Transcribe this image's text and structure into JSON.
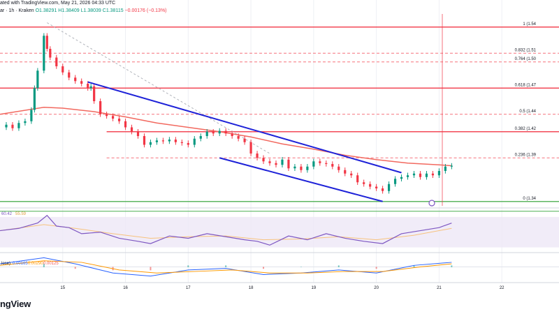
{
  "header": {
    "text": "ated with TradingView.com, May 21, 2026 04:33 UTC",
    "symbol": "ar · 1h · Kraken",
    "o": "O1.38291",
    "h": "H1.38409",
    "l": "L1.38039",
    "c": "C1.38115",
    "chg": "−0.00176 (−0.13%)"
  },
  "logo": "ngView",
  "fib_labels": [
    {
      "label": "1 (1.54",
      "level": 1.54
    },
    {
      "label": "0.832 (1.51",
      "level": 1.51
    },
    {
      "label": "0.764 (1.50",
      "level": 1.5
    },
    {
      "label": "0.618 (1.47",
      "level": 1.47
    },
    {
      "label": "0.5 (1.44",
      "level": 1.44
    },
    {
      "label": "0.382 (1.42",
      "level": 1.42
    },
    {
      "label": "0.236 (1.39",
      "level": 1.39
    },
    {
      "label": "0 (1.34",
      "level": 1.34
    }
  ],
  "rsi_labels": {
    "a": "60.42",
    "b": "55.59"
  },
  "macd_labels": {
    "name": "lose)",
    "a": "0.00165",
    "b": "0.00290",
    "c": "0.00125"
  },
  "chart_data": {
    "type": "line",
    "price_range": [
      1.335,
      1.555
    ],
    "x_ticks": [
      "15",
      "16",
      "17",
      "18",
      "19",
      "20",
      "21",
      "22"
    ],
    "x_tick_pos": [
      15,
      16,
      17,
      18,
      19,
      20,
      21,
      22
    ],
    "x_range": [
      14.0,
      22.8
    ],
    "colors": {
      "up": "#089981",
      "down": "#f23645",
      "trend": "#1e22d8",
      "ma": "#f2695f",
      "fib": "#f23645",
      "fib_light": "#e08a8a",
      "support": "#4caf50",
      "rsi": "#7e57c2",
      "rsi_bg": "#ede7f6",
      "rsi_ma": "#f7c27d",
      "macd": "#2962ff",
      "signal": "#ff9800"
    },
    "candles_close": [
      [
        14.0,
        1.425
      ],
      [
        14.1,
        1.428
      ],
      [
        14.2,
        1.424
      ],
      [
        14.3,
        1.43
      ],
      [
        14.4,
        1.432
      ],
      [
        14.5,
        1.445
      ],
      [
        14.55,
        1.47
      ],
      [
        14.6,
        1.49
      ],
      [
        14.7,
        1.53
      ],
      [
        14.75,
        1.515
      ],
      [
        14.8,
        1.505
      ],
      [
        14.9,
        1.495
      ],
      [
        15.0,
        1.488
      ],
      [
        15.1,
        1.482
      ],
      [
        15.2,
        1.478
      ],
      [
        15.3,
        1.475
      ],
      [
        15.4,
        1.47
      ],
      [
        15.45,
        1.472
      ],
      [
        15.5,
        1.455
      ],
      [
        15.6,
        1.44
      ],
      [
        15.7,
        1.438
      ],
      [
        15.8,
        1.435
      ],
      [
        15.9,
        1.432
      ],
      [
        16.0,
        1.425
      ],
      [
        16.1,
        1.42
      ],
      [
        16.2,
        1.415
      ],
      [
        16.3,
        1.405
      ],
      [
        16.4,
        1.408
      ],
      [
        16.5,
        1.41
      ],
      [
        16.6,
        1.409
      ],
      [
        16.7,
        1.411
      ],
      [
        16.8,
        1.408
      ],
      [
        16.9,
        1.407
      ],
      [
        17.0,
        1.405
      ],
      [
        17.1,
        1.412
      ],
      [
        17.2,
        1.415
      ],
      [
        17.3,
        1.42
      ],
      [
        17.4,
        1.418
      ],
      [
        17.5,
        1.421
      ],
      [
        17.6,
        1.418
      ],
      [
        17.7,
        1.415
      ],
      [
        17.8,
        1.412
      ],
      [
        17.9,
        1.408
      ],
      [
        18.0,
        1.395
      ],
      [
        18.1,
        1.39
      ],
      [
        18.2,
        1.386
      ],
      [
        18.3,
        1.384
      ],
      [
        18.4,
        1.382
      ],
      [
        18.5,
        1.388
      ],
      [
        18.6,
        1.378
      ],
      [
        18.7,
        1.38
      ],
      [
        18.8,
        1.376
      ],
      [
        18.9,
        1.38
      ],
      [
        19.0,
        1.386
      ],
      [
        19.1,
        1.384
      ],
      [
        19.2,
        1.383
      ],
      [
        19.3,
        1.38
      ],
      [
        19.4,
        1.376
      ],
      [
        19.5,
        1.372
      ],
      [
        19.6,
        1.37
      ],
      [
        19.7,
        1.362
      ],
      [
        19.8,
        1.36
      ],
      [
        19.9,
        1.357
      ],
      [
        20.0,
        1.355
      ],
      [
        20.1,
        1.352
      ],
      [
        20.2,
        1.36
      ],
      [
        20.3,
        1.366
      ],
      [
        20.4,
        1.368
      ],
      [
        20.5,
        1.37
      ],
      [
        20.6,
        1.372
      ],
      [
        20.7,
        1.368
      ],
      [
        20.8,
        1.372
      ],
      [
        20.9,
        1.37
      ],
      [
        21.0,
        1.375
      ],
      [
        21.1,
        1.38
      ],
      [
        21.2,
        1.381
      ]
    ],
    "ma_line": [
      [
        14.0,
        1.44
      ],
      [
        14.7,
        1.448
      ],
      [
        15.0,
        1.447
      ],
      [
        15.5,
        1.443
      ],
      [
        16.0,
        1.437
      ],
      [
        16.5,
        1.43
      ],
      [
        17.0,
        1.425
      ],
      [
        17.5,
        1.42
      ],
      [
        18.0,
        1.414
      ],
      [
        18.5,
        1.406
      ],
      [
        19.0,
        1.4
      ],
      [
        19.5,
        1.393
      ],
      [
        20.0,
        1.388
      ],
      [
        20.5,
        1.384
      ],
      [
        21.0,
        1.382
      ],
      [
        21.2,
        1.381
      ]
    ],
    "dashed_line": [
      [
        14.75,
        1.545
      ],
      [
        18.3,
        1.395
      ]
    ],
    "trend_upper": [
      [
        15.4,
        1.477
      ],
      [
        20.4,
        1.373
      ]
    ],
    "trend_lower": [
      [
        17.5,
        1.39
      ],
      [
        20.1,
        1.34
      ]
    ],
    "fib_lines": [
      1.54,
      1.51,
      1.5,
      1.47,
      1.44,
      1.42,
      1.39,
      1.34
    ],
    "fib_lines_start": [
      14.0,
      14.0,
      14.0,
      14.0,
      14.0,
      15.7,
      15.7,
      14.0
    ],
    "support": [
      1.332
    ],
    "rsi": [
      [
        14.0,
        52
      ],
      [
        14.3,
        55
      ],
      [
        14.6,
        62
      ],
      [
        14.75,
        72
      ],
      [
        14.9,
        58
      ],
      [
        15.1,
        56
      ],
      [
        15.3,
        48
      ],
      [
        15.6,
        50
      ],
      [
        15.9,
        42
      ],
      [
        16.2,
        38
      ],
      [
        16.4,
        35
      ],
      [
        16.7,
        45
      ],
      [
        17.0,
        42
      ],
      [
        17.3,
        48
      ],
      [
        17.6,
        44
      ],
      [
        17.9,
        40
      ],
      [
        18.1,
        38
      ],
      [
        18.3,
        33
      ],
      [
        18.6,
        45
      ],
      [
        18.9,
        40
      ],
      [
        19.2,
        48
      ],
      [
        19.5,
        42
      ],
      [
        19.8,
        38
      ],
      [
        20.1,
        35
      ],
      [
        20.4,
        48
      ],
      [
        20.7,
        52
      ],
      [
        21.0,
        56
      ],
      [
        21.2,
        62
      ]
    ],
    "rsi_ma": [
      [
        14.0,
        52
      ],
      [
        14.7,
        60
      ],
      [
        15.2,
        55
      ],
      [
        15.8,
        48
      ],
      [
        16.4,
        42
      ],
      [
        17.0,
        44
      ],
      [
        17.6,
        45
      ],
      [
        18.2,
        40
      ],
      [
        18.8,
        41
      ],
      [
        19.4,
        44
      ],
      [
        20.0,
        40
      ],
      [
        20.6,
        46
      ],
      [
        21.2,
        55
      ]
    ],
    "macd": [
      [
        14.0,
        0.002
      ],
      [
        14.7,
        0.006
      ],
      [
        15.2,
        0.002
      ],
      [
        15.8,
        -0.004
      ],
      [
        16.4,
        -0.006
      ],
      [
        17.0,
        -0.002
      ],
      [
        17.6,
        -0.001
      ],
      [
        18.2,
        -0.005
      ],
      [
        18.8,
        -0.004
      ],
      [
        19.4,
        -0.002
      ],
      [
        20.0,
        -0.004
      ],
      [
        20.6,
        0.001
      ],
      [
        21.2,
        0.003
      ]
    ],
    "signal": [
      [
        14.0,
        0.001
      ],
      [
        14.7,
        0.004
      ],
      [
        15.3,
        0.003
      ],
      [
        15.9,
        -0.002
      ],
      [
        16.5,
        -0.004
      ],
      [
        17.1,
        -0.003
      ],
      [
        17.7,
        -0.002
      ],
      [
        18.3,
        -0.004
      ],
      [
        18.9,
        -0.004
      ],
      [
        19.5,
        -0.003
      ],
      [
        20.1,
        -0.003
      ],
      [
        20.7,
        0.0
      ],
      [
        21.2,
        0.002
      ]
    ]
  }
}
